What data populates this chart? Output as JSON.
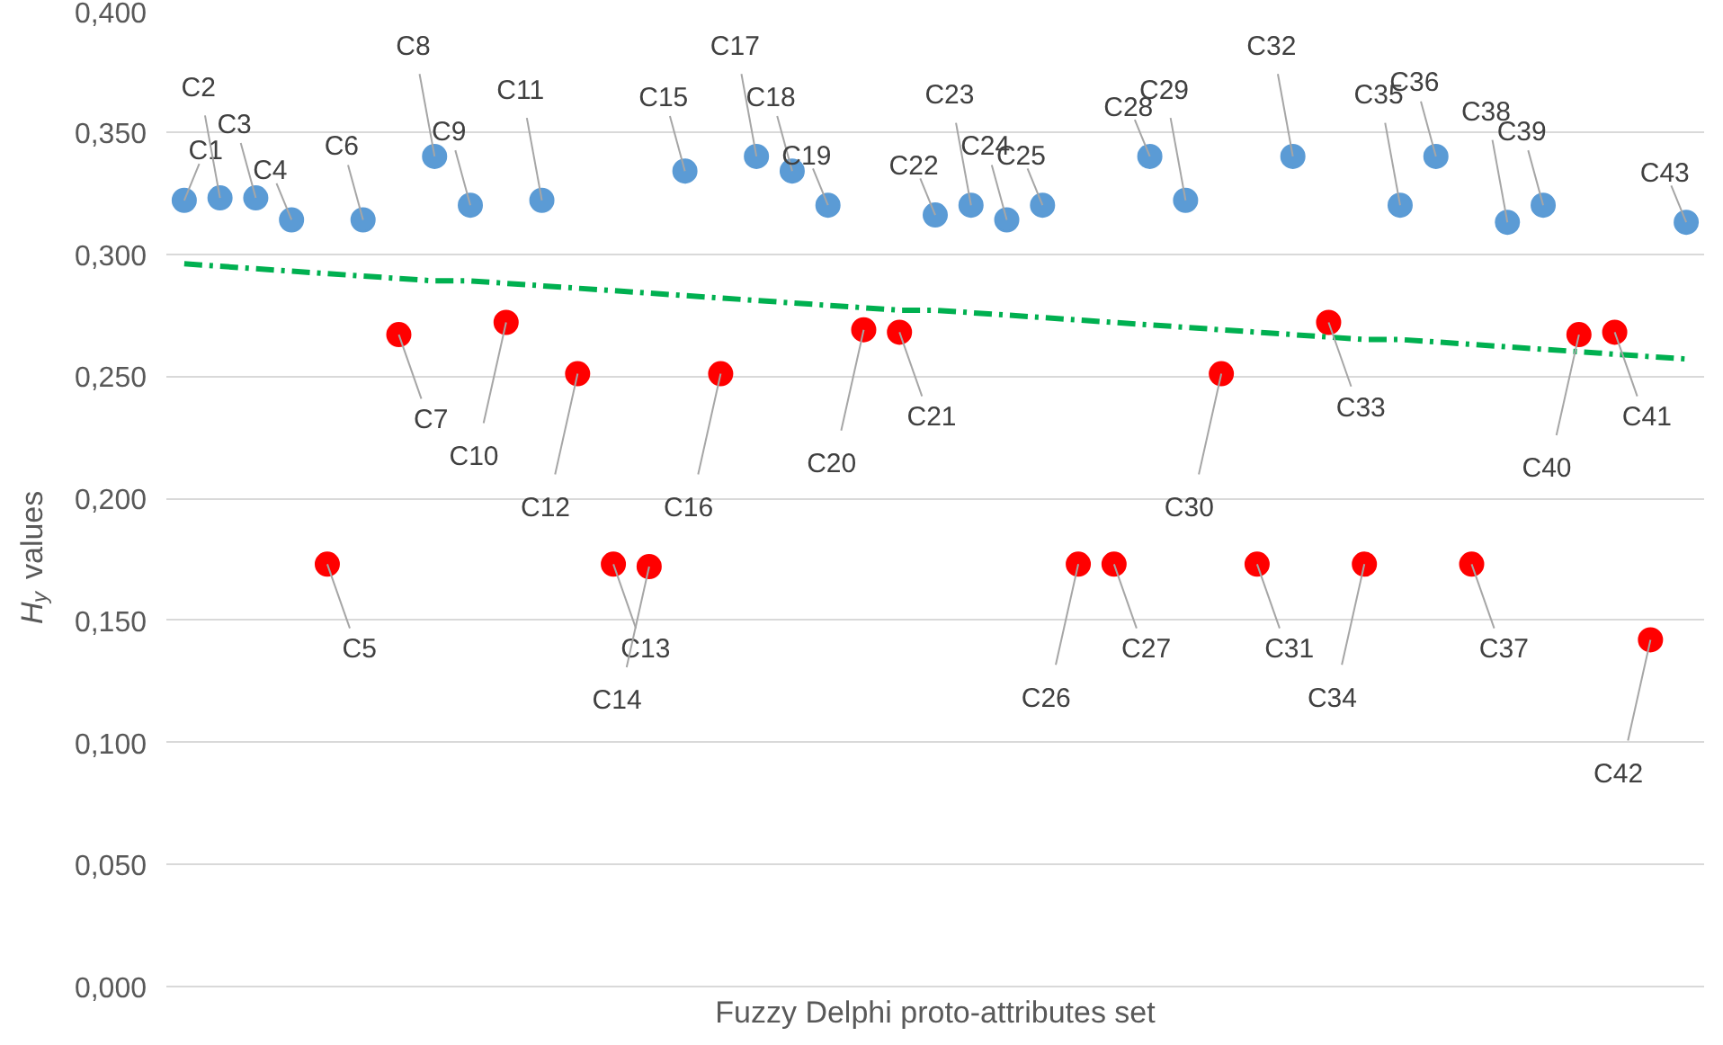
{
  "chart_data": {
    "type": "scatter",
    "xlabel": "Fuzzy Delphi proto-attributes set",
    "ylabel": "H$_{y}$ values",
    "categories": [
      null,
      null,
      null,
      null,
      null,
      null,
      null,
      null,
      null,
      null,
      null,
      null,
      null,
      null,
      null,
      null,
      null,
      null,
      null,
      null,
      null,
      null,
      null,
      null,
      null,
      null,
      null,
      null,
      null,
      null,
      null,
      null,
      null,
      null,
      null,
      null,
      null,
      null,
      null,
      null,
      null,
      null,
      null
    ],
    "annotations": [
      "C1",
      "C2",
      "C3",
      "C4",
      "C5",
      "C6",
      "C7",
      "C8",
      "C9",
      "C10",
      "C11",
      "C12",
      "C13",
      "C14",
      "C15",
      "C16",
      "C17",
      "C18",
      "C19",
      "C20",
      "C21",
      "C22",
      "C23",
      "C24",
      "C25",
      "C26",
      "C27",
      "C28",
      "C29",
      "C30",
      "C31",
      "C32",
      "C33",
      "C34",
      "C35",
      "C36",
      "C37",
      "C38",
      "C39",
      "C40",
      "C41",
      "C42",
      "C43"
    ],
    "series": [
      {
        "color": "#5b9bd5",
        "values": [
          0.322,
          0.323,
          0.323,
          0.314,
          null,
          0.314,
          null,
          0.34,
          0.32,
          null,
          0.322,
          null,
          null,
          null,
          0.334,
          null,
          0.34,
          0.334,
          0.32,
          null,
          null,
          0.316,
          0.32,
          0.314,
          0.32,
          null,
          null,
          0.34,
          0.322,
          null,
          null,
          0.34,
          null,
          null,
          0.32,
          0.34,
          null,
          0.313,
          0.32,
          null,
          null,
          null,
          0.313
        ]
      },
      {
        "color": "#ff0000",
        "values": [
          null,
          null,
          null,
          null,
          0.173,
          null,
          0.267,
          null,
          null,
          0.272,
          null,
          0.251,
          0.173,
          0.172,
          null,
          0.251,
          null,
          null,
          null,
          0.269,
          0.268,
          null,
          null,
          null,
          null,
          0.173,
          0.173,
          null,
          null,
          0.251,
          0.173,
          null,
          0.272,
          0.173,
          null,
          null,
          0.173,
          null,
          null,
          0.267,
          0.268,
          0.142,
          null
        ]
      },
      {
        "type": "line",
        "color": "#00b050",
        "line_style": "dashed",
        "marker": "none",
        "values": [
          0.296,
          0.295,
          0.294,
          0.293,
          0.292,
          0.291,
          0.29,
          0.289,
          0.289,
          0.288,
          0.287,
          0.286,
          0.285,
          0.284,
          0.283,
          0.282,
          0.281,
          0.28,
          0.279,
          0.278,
          0.277,
          0.277,
          0.276,
          0.275,
          0.274,
          0.273,
          0.272,
          0.271,
          0.27,
          0.269,
          0.268,
          0.267,
          0.266,
          0.265,
          0.265,
          0.264,
          0.263,
          0.262,
          0.261,
          0.26,
          0.259,
          0.258,
          0.257
        ]
      }
    ],
    "ylim": [
      0,
      0.4
    ],
    "yticks": [
      {
        "value": 0,
        "label": "0,000"
      },
      {
        "value": 0.05,
        "label": "0,050"
      },
      {
        "value": 0.1,
        "label": "0,100"
      },
      {
        "value": 0.15,
        "label": "0,150"
      },
      {
        "value": 0.2,
        "label": "0,200"
      },
      {
        "value": 0.25,
        "label": "0,250"
      },
      {
        "value": 0.3,
        "label": "0,300"
      },
      {
        "value": 0.35,
        "label": "0,350"
      },
      {
        "value": 0.4,
        "label": "0,400"
      }
    ],
    "grid": "y",
    "marker": "circle",
    "tick_labels": "y"
  }
}
